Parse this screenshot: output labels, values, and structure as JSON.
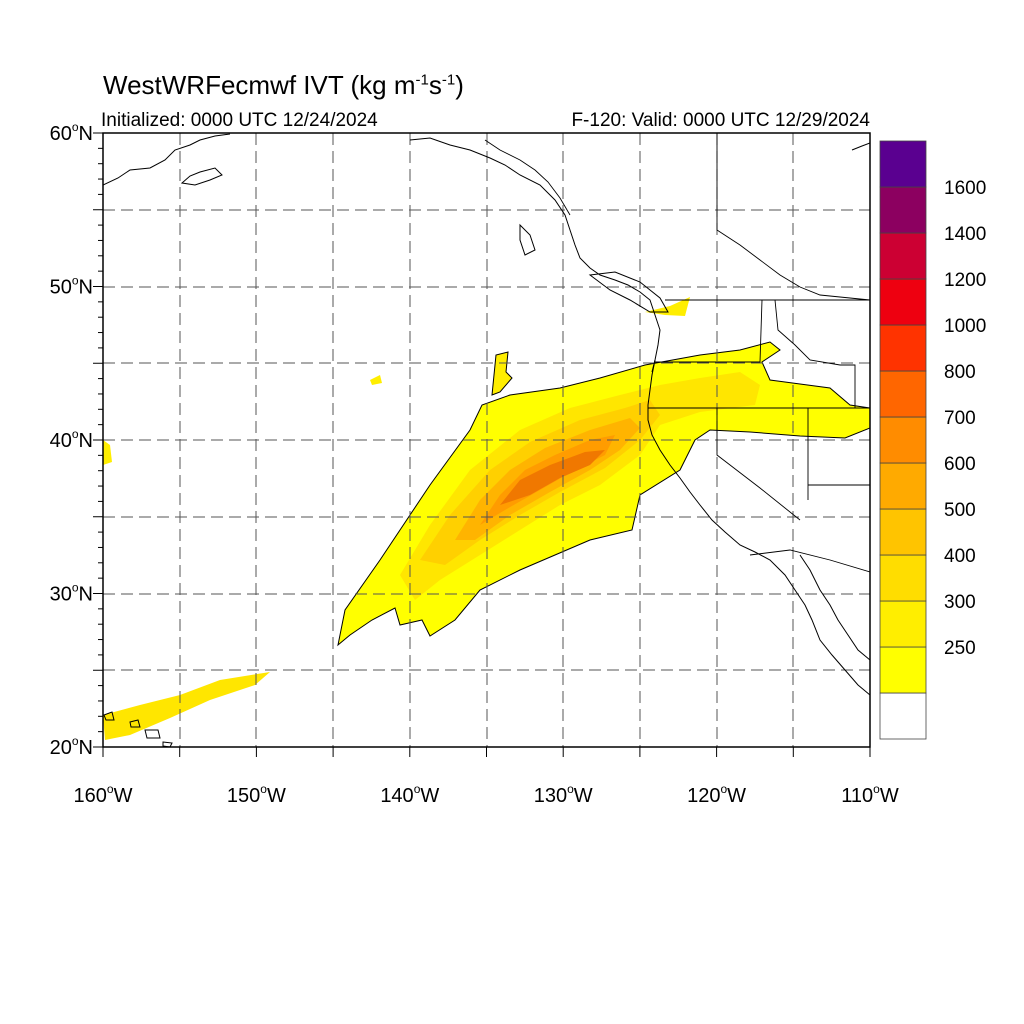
{
  "title": {
    "main": "WestWRFecmwf IVT (kg m",
    "sup1": "-1",
    "mid": "s",
    "sup2": "-1",
    "end": ")"
  },
  "initialized": "Initialized: 0000 UTC 12/24/2024",
  "valid": "F-120: Valid: 0000 UTC 12/29/2024",
  "map_data": {
    "extent": {
      "lon_min": -160,
      "lon_max": -110,
      "lat_min": 20,
      "lat_max": 60
    },
    "lat_labels": [
      {
        "lat": 60,
        "value": "60",
        "unit": "o",
        "hem": "N"
      },
      {
        "lat": 50,
        "value": "50",
        "unit": "o",
        "hem": "N"
      },
      {
        "lat": 40,
        "value": "40",
        "unit": "o",
        "hem": "N"
      },
      {
        "lat": 30,
        "value": "30",
        "unit": "o",
        "hem": "N"
      },
      {
        "lat": 20,
        "value": "20",
        "unit": "o",
        "hem": "N"
      }
    ],
    "lon_labels": [
      {
        "lon": -160,
        "value": "160",
        "unit": "o",
        "hem": "W"
      },
      {
        "lon": -150,
        "value": "150",
        "unit": "o",
        "hem": "W"
      },
      {
        "lon": -140,
        "value": "140",
        "unit": "o",
        "hem": "W"
      },
      {
        "lon": -130,
        "value": "130",
        "unit": "o",
        "hem": "W"
      },
      {
        "lon": -120,
        "value": "120",
        "unit": "o",
        "hem": "W"
      },
      {
        "lon": -110,
        "value": "110",
        "unit": "o",
        "hem": "W"
      }
    ],
    "gridlines": {
      "lat_step": 5,
      "lon_step": 5,
      "style": "dashed"
    }
  },
  "colorbar": {
    "levels": [
      {
        "color": "#ffffff",
        "label": ""
      },
      {
        "color": "#ffff00",
        "label": "250"
      },
      {
        "color": "#ffee00",
        "label": "300"
      },
      {
        "color": "#ffdd00",
        "label": "400"
      },
      {
        "color": "#ffc400",
        "label": "500"
      },
      {
        "color": "#ffaa00",
        "label": "600"
      },
      {
        "color": "#ff8c00",
        "label": "700"
      },
      {
        "color": "#ff6600",
        "label": "800"
      },
      {
        "color": "#ff3300",
        "label": "1000"
      },
      {
        "color": "#ee0010",
        "label": "1200"
      },
      {
        "color": "#cc0033",
        "label": "1400"
      },
      {
        "color": "#8c0060",
        "label": "1600"
      },
      {
        "color": "#5a0090",
        "label": ""
      }
    ]
  }
}
